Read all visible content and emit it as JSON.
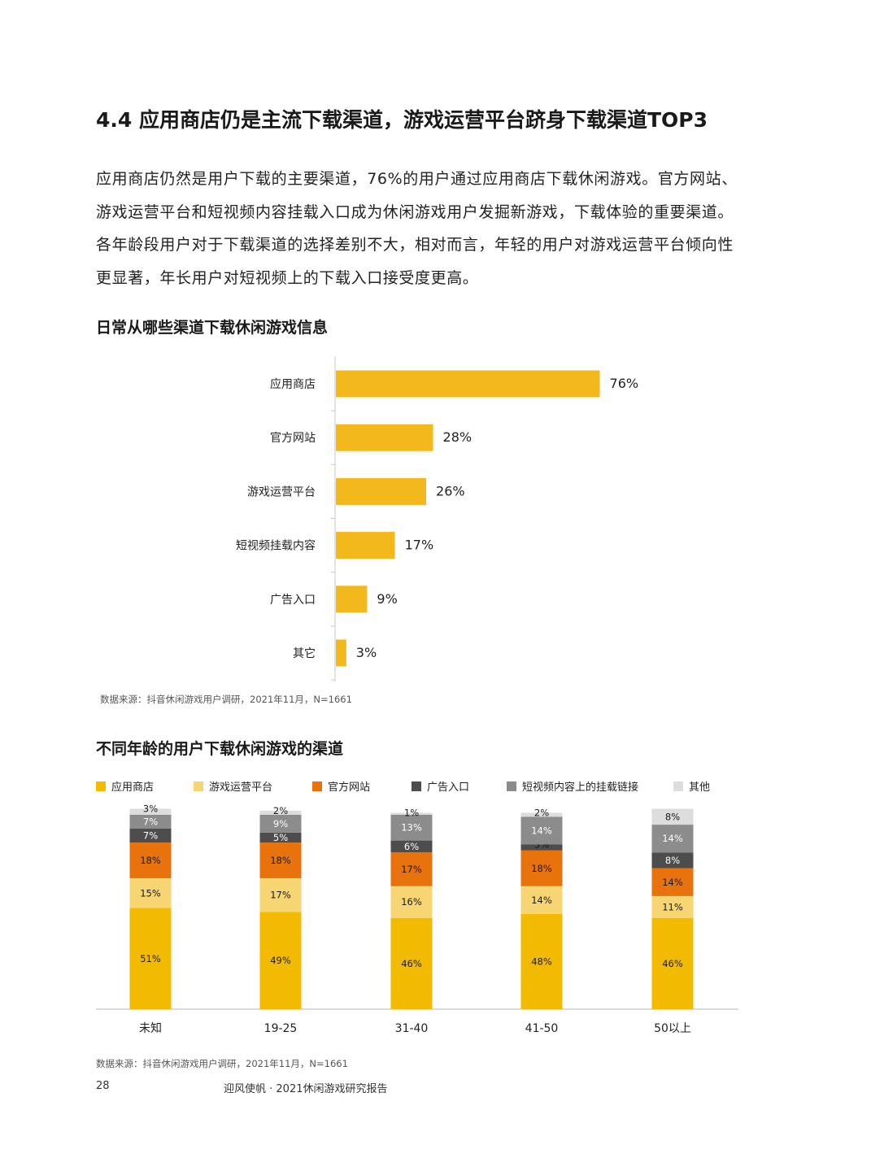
{
  "section_title": "4.4 应用商店仍是主流下载渠道，游戏运营平台跻身下载渠道TOP3",
  "paragraph": "应用商店仍然是用户下载的主要渠道，76%的用户通过应用商店下载休闲游戏。官方网站、游戏运营平台和短视频内容挂载入口成为休闲游戏用户发掘新游戏，下载体验的重要渠道。各年龄段用户对于下载渠道的选择差别不大，相对而言，年轻的用户对游戏运营平台倾向性更显著，年长用户对短视频上的下载入口接受度更高。",
  "chart1": {
    "title": "日常从哪些渠道下载休闲游戏信息",
    "source": "数据来源：抖音休闲游戏用户调研，2021年11月，N=1661"
  },
  "chart2": {
    "title": "不同年龄的用户下载休闲游戏的渠道",
    "source": "数据来源：抖音休闲游戏用户调研，2021年11月，N=1661"
  },
  "footer": {
    "page_number": "28",
    "report_title": "迎风使帆 · 2021休闲游戏研究报告"
  },
  "chart_data": [
    {
      "type": "bar",
      "orientation": "horizontal",
      "title": "日常从哪些渠道下载休闲游戏信息",
      "categories": [
        "应用商店",
        "官方网站",
        "游戏运营平台",
        "短视频挂载内容",
        "广告入口",
        "其它"
      ],
      "values": [
        76,
        28,
        26,
        17,
        9,
        3
      ],
      "labels": [
        "76%",
        "28%",
        "26%",
        "17%",
        "9%",
        "3%"
      ],
      "unit": "%",
      "xlim": [
        0,
        100
      ],
      "color": "#F2B81C"
    },
    {
      "type": "bar",
      "stacked": true,
      "title": "不同年龄的用户下载休闲游戏的渠道",
      "categories": [
        "未知",
        "19-25",
        "31-40",
        "41-50",
        "50以上"
      ],
      "ylim": [
        0,
        100
      ],
      "legend_position": "top",
      "series": [
        {
          "name": "应用商店",
          "color": "#F2BA00",
          "values": [
            51,
            49,
            46,
            48,
            46
          ],
          "labels": [
            "51%",
            "49%",
            "46%",
            "48%",
            "46%"
          ]
        },
        {
          "name": "游戏运营平台",
          "color": "#F7D572",
          "values": [
            15,
            17,
            16,
            14,
            11
          ],
          "labels": [
            "15%",
            "17%",
            "16%",
            "14%",
            "11%"
          ]
        },
        {
          "name": "官方网站",
          "color": "#E8720C",
          "values": [
            18,
            18,
            17,
            18,
            14
          ],
          "labels": [
            "18%",
            "18%",
            "17%",
            "18%",
            "14%"
          ]
        },
        {
          "name": "广告入口",
          "color": "#4D4D4D",
          "values": [
            7,
            5,
            6,
            3,
            8
          ],
          "labels": [
            "7%",
            "5%",
            "6%",
            "3%",
            "8%"
          ]
        },
        {
          "name": "短视频内容上的挂载链接",
          "color": "#8C8C8C",
          "values": [
            7,
            9,
            13,
            14,
            14
          ],
          "labels": [
            "7%",
            "9%",
            "13%",
            "14%",
            "14%"
          ]
        },
        {
          "name": "其他",
          "color": "#DDDDDD",
          "values": [
            3,
            2,
            1,
            2,
            8
          ],
          "labels": [
            "3%",
            "2%",
            "1%",
            "2%",
            "8%"
          ]
        }
      ]
    }
  ]
}
